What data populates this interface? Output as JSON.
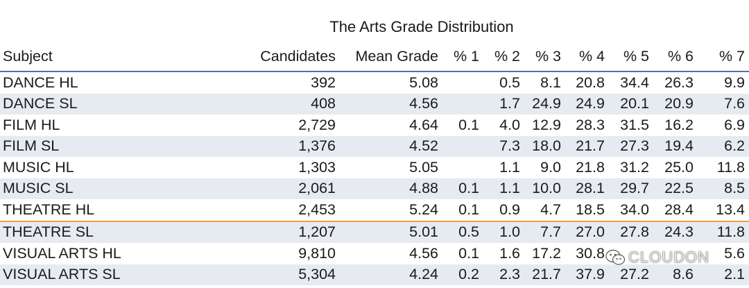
{
  "title": "The Arts Grade Distribution",
  "columns": [
    "Subject",
    "Candidates",
    "Mean Grade",
    "% 1",
    "% 2",
    "% 3",
    "% 4",
    "% 5",
    "% 6",
    "% 7"
  ],
  "rows": [
    [
      "DANCE HL",
      "392",
      "5.08",
      "",
      "0.5",
      "8.1",
      "20.8",
      "34.4",
      "26.3",
      "9.9"
    ],
    [
      "DANCE SL",
      "408",
      "4.56",
      "",
      "1.7",
      "24.9",
      "24.9",
      "20.1",
      "20.9",
      "7.6"
    ],
    [
      "FILM HL",
      "2,729",
      "4.64",
      "0.1",
      "4.0",
      "12.9",
      "28.3",
      "31.5",
      "16.2",
      "6.9"
    ],
    [
      "FILM SL",
      "1,376",
      "4.52",
      "",
      "7.3",
      "18.0",
      "21.7",
      "27.3",
      "19.4",
      "6.2"
    ],
    [
      "MUSIC HL",
      "1,303",
      "5.05",
      "",
      "1.1",
      "9.0",
      "21.8",
      "31.2",
      "25.0",
      "11.8"
    ],
    [
      "MUSIC SL",
      "2,061",
      "4.88",
      "0.1",
      "1.1",
      "10.0",
      "28.1",
      "29.7",
      "22.5",
      "8.5"
    ],
    [
      "THEATRE HL",
      "2,453",
      "5.24",
      "0.1",
      "0.9",
      "4.7",
      "18.5",
      "34.0",
      "28.4",
      "13.4"
    ],
    [
      "THEATRE SL",
      "1,207",
      "5.01",
      "0.5",
      "1.0",
      "7.7",
      "27.0",
      "27.8",
      "24.3",
      "11.8"
    ],
    [
      "VISUAL ARTS HL",
      "9,810",
      "4.56",
      "0.1",
      "1.6",
      "17.2",
      "30.8",
      "",
      "",
      "5.6"
    ],
    [
      "VISUAL ARTS SL",
      "5,304",
      "4.24",
      "0.2",
      "2.3",
      "21.7",
      "37.9",
      "27.2",
      "8.6",
      "2.1"
    ]
  ],
  "watermark": {
    "text": "CLOUDON",
    "icon": "wechat-icon"
  }
}
